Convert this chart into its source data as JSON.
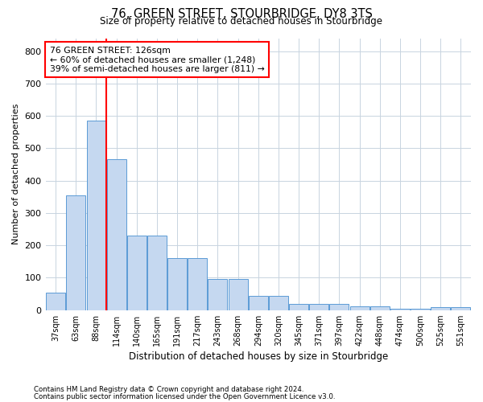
{
  "title": "76, GREEN STREET, STOURBRIDGE, DY8 3TS",
  "subtitle": "Size of property relative to detached houses in Stourbridge",
  "xlabel": "Distribution of detached houses by size in Stourbridge",
  "ylabel": "Number of detached properties",
  "footnote1": "Contains HM Land Registry data © Crown copyright and database right 2024.",
  "footnote2": "Contains public sector information licensed under the Open Government Licence v3.0.",
  "categories": [
    "37sqm",
    "63sqm",
    "88sqm",
    "114sqm",
    "140sqm",
    "165sqm",
    "191sqm",
    "217sqm",
    "243sqm",
    "268sqm",
    "294sqm",
    "320sqm",
    "345sqm",
    "371sqm",
    "397sqm",
    "422sqm",
    "448sqm",
    "474sqm",
    "500sqm",
    "525sqm",
    "551sqm"
  ],
  "values": [
    55,
    355,
    585,
    465,
    230,
    230,
    160,
    160,
    95,
    95,
    43,
    43,
    18,
    18,
    18,
    12,
    12,
    5,
    5,
    8,
    8
  ],
  "bar_color": "#c5d8f0",
  "bar_edge_color": "#5b9bd5",
  "vline_x": 2.5,
  "vline_color": "red",
  "annotation_text": "76 GREEN STREET: 126sqm\n← 60% of detached houses are smaller (1,248)\n39% of semi-detached houses are larger (811) →",
  "annotation_box_color": "red",
  "ylim": [
    0,
    840
  ],
  "yticks": [
    0,
    100,
    200,
    300,
    400,
    500,
    600,
    700,
    800
  ],
  "background_color": "#ffffff",
  "grid_color": "#c8d4e0"
}
